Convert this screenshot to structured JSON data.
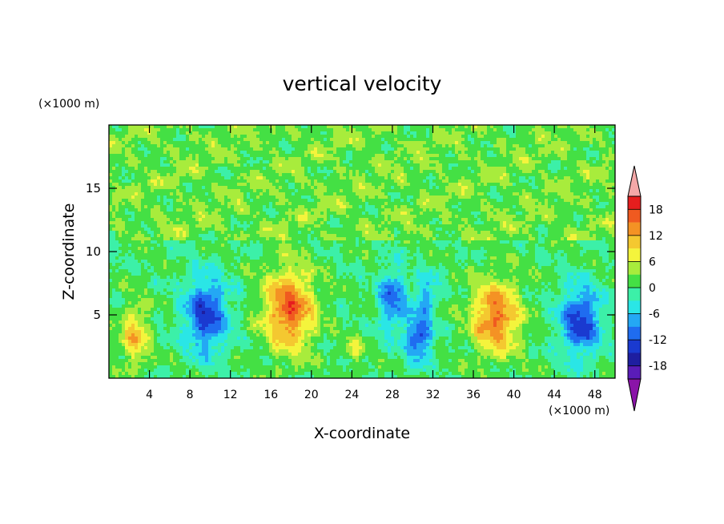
{
  "chart_data": {
    "type": "heatmap",
    "title": "vertical velocity",
    "xlabel": "X-coordinate",
    "ylabel": "Z-coordinate",
    "x_unit_label": "(×1000 m)",
    "y_unit_label": "(×1000 m)",
    "xlim": [
      0,
      50
    ],
    "ylim": [
      0,
      20
    ],
    "x_ticks": [
      4,
      8,
      12,
      16,
      20,
      24,
      28,
      32,
      36,
      40,
      44,
      48
    ],
    "y_ticks": [
      5,
      10,
      15
    ],
    "x_tick_labels": [
      "4",
      "8",
      "12",
      "16",
      "20",
      "24",
      "28",
      "32",
      "36",
      "40",
      "44",
      "48"
    ],
    "y_tick_labels": [
      "5",
      "10",
      "15"
    ],
    "colorbar": {
      "levels": [
        -21,
        -18,
        -15,
        -12,
        -9,
        -6,
        -3,
        0,
        3,
        6,
        9,
        12,
        15,
        18,
        21
      ],
      "tick_labels": [
        "18",
        "12",
        "6",
        "0",
        "-6",
        "-12",
        "-18"
      ],
      "tick_values": [
        18,
        12,
        6,
        0,
        -6,
        -12,
        -18
      ],
      "colors": [
        "#8a14a8",
        "#5a1cb8",
        "#1e1ea0",
        "#1a3ad0",
        "#1f6cf0",
        "#24a8f4",
        "#2ae6e6",
        "#3cf0a8",
        "#44e044",
        "#a8ec3c",
        "#f4f43c",
        "#f4c830",
        "#f49224",
        "#f05a20",
        "#e61e1e",
        "#f4a8a8"
      ],
      "under_color": "#8a14a8",
      "over_color": "#f4a8a8"
    },
    "features": [
      {
        "x": 2.6,
        "z": 3.3,
        "amp": 10,
        "sx": 1.3,
        "sz": 2.2
      },
      {
        "x": 9.6,
        "z": 5.0,
        "amp": -14,
        "sx": 2.0,
        "sz": 2.8
      },
      {
        "x": 17.8,
        "z": 5.4,
        "amp": 16,
        "sx": 2.3,
        "sz": 3.0
      },
      {
        "x": 24.2,
        "z": 2.2,
        "amp": 5,
        "sx": 0.9,
        "sz": 1.2
      },
      {
        "x": 28.0,
        "z": 6.2,
        "amp": -11,
        "sx": 1.3,
        "sz": 2.3
      },
      {
        "x": 30.6,
        "z": 3.2,
        "amp": -13,
        "sx": 1.2,
        "sz": 1.8
      },
      {
        "x": 31.4,
        "z": 6.5,
        "amp": -8,
        "sx": 1.0,
        "sz": 1.6
      },
      {
        "x": 38.2,
        "z": 4.8,
        "amp": 15,
        "sx": 2.2,
        "sz": 2.7
      },
      {
        "x": 46.6,
        "z": 4.5,
        "amp": -14,
        "sx": 1.9,
        "sz": 2.6
      }
    ]
  }
}
